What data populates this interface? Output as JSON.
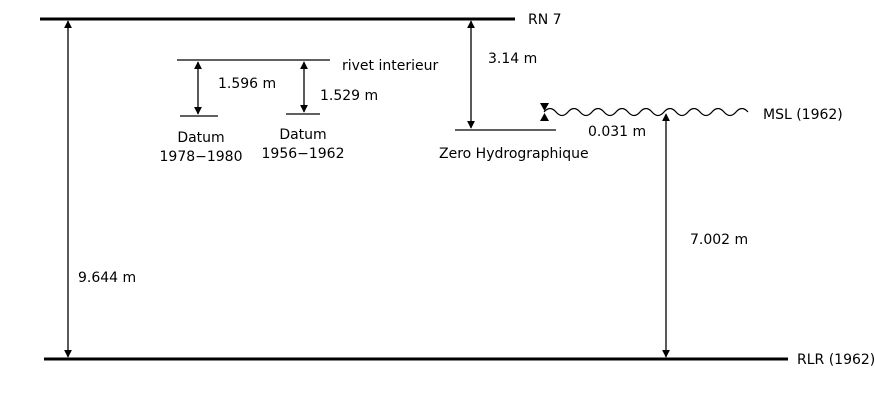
{
  "labels": {
    "rn7": "RN 7",
    "rivet": "rivet interieur",
    "msl": "MSL (1962)",
    "rlr": "RLR (1962)",
    "zero_hydro": "Zero Hydrographique",
    "datum_a_line1": "Datum",
    "datum_a_line2": "1978−1980",
    "datum_b_line1": "Datum",
    "datum_b_line2": "1956−1962"
  },
  "measurements": {
    "rn7_to_rlr": "9.644 m",
    "rivet_to_datum_a": "1.596 m",
    "rivet_to_datum_b": "1.529 m",
    "rn7_to_zero_hydro": "3.14 m",
    "zero_hydro_to_msl": "0.031 m",
    "msl_to_rlr": "7.002 m"
  }
}
